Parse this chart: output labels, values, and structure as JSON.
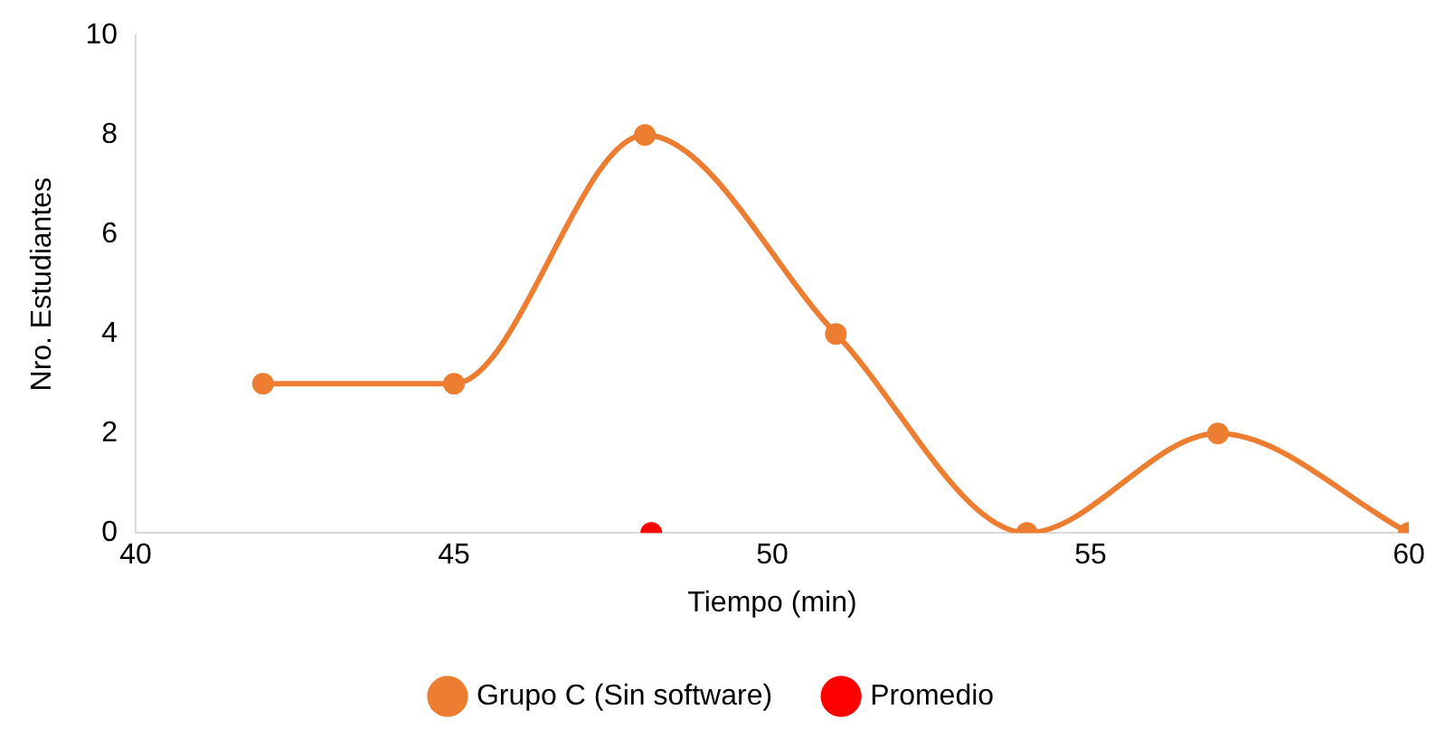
{
  "chart_data": {
    "type": "line",
    "xlabel": "Tiempo (min)",
    "ylabel": "Nro. Estudiantes",
    "xlim": [
      40,
      60
    ],
    "xticks": [
      40,
      45,
      50,
      55,
      60
    ],
    "ylim": [
      0,
      10
    ],
    "yticks": [
      0,
      2,
      4,
      6,
      8,
      10
    ],
    "series": [
      {
        "name": "Grupo C (Sin software)",
        "color": "#ed7d31",
        "x": [
          42,
          45,
          48,
          51,
          54,
          57,
          60
        ],
        "values": [
          3,
          3,
          8,
          4,
          0,
          2,
          0
        ],
        "marker": "circle"
      },
      {
        "name": "Promedio",
        "type": "scatter",
        "color": "#ff0000",
        "x": [
          48.1
        ],
        "values": [
          0
        ],
        "marker": "circle"
      }
    ],
    "grid": false,
    "legend": "bottom"
  }
}
